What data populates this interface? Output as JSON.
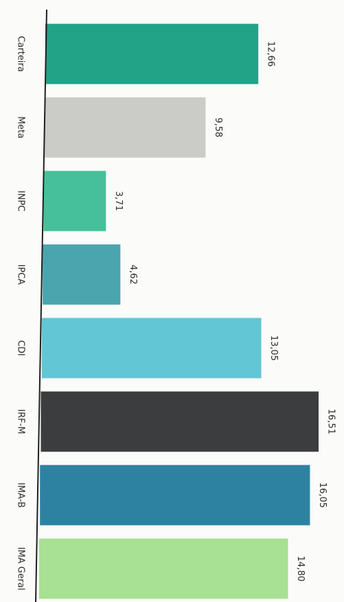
{
  "chart_data": {
    "type": "bar",
    "orientation": "horizontal",
    "categories": [
      "Carteira",
      "Meta",
      "INPC",
      "IPCA",
      "CDI",
      "IRF-M",
      "IMA-B",
      "IMA Geral"
    ],
    "values": [
      12.66,
      9.58,
      3.71,
      4.62,
      13.05,
      16.51,
      16.05,
      14.8
    ],
    "value_labels": [
      "12,66",
      "9,58",
      "3,71",
      "4,62",
      "13,05",
      "16,51",
      "16,05",
      "14,80"
    ],
    "colors": [
      "#22a387",
      "#cbcbc7",
      "#45c09a",
      "#4aa5ae",
      "#62c6d5",
      "#3b3d3e",
      "#2e82a1",
      "#a8e094"
    ],
    "title": "",
    "xlabel": "",
    "ylabel": "",
    "xlim": [
      0,
      18
    ],
    "grid": false,
    "legend": "none"
  }
}
